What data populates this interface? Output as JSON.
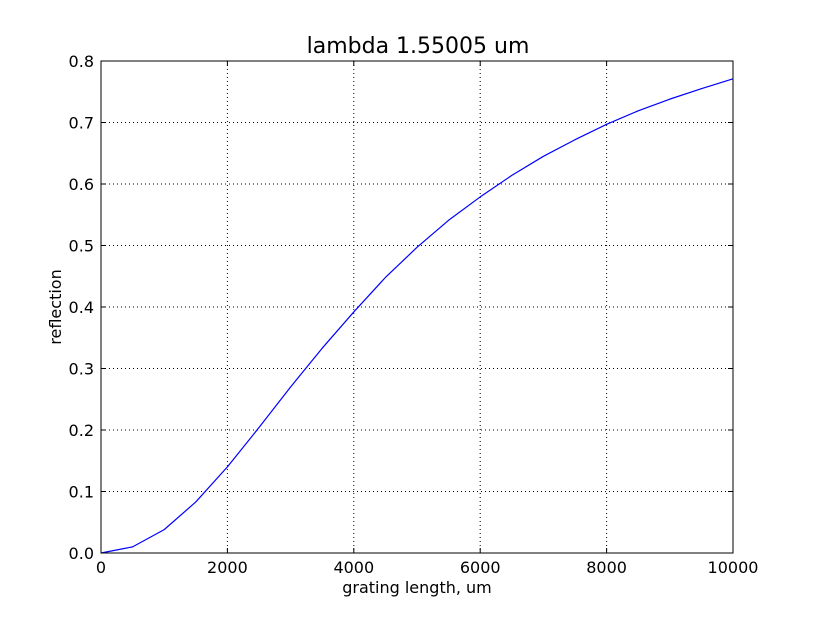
{
  "chart_data": {
    "type": "line",
    "title": "lambda 1.55005 um",
    "xlabel": "grating length, um",
    "ylabel": "reflection",
    "xlim": [
      0,
      10000
    ],
    "ylim": [
      0,
      0.8
    ],
    "xticks": [
      0,
      2000,
      4000,
      6000,
      8000,
      10000
    ],
    "yticks": [
      0.0,
      0.1,
      0.2,
      0.3,
      0.4,
      0.5,
      0.6,
      0.7,
      0.8
    ],
    "xtick_labels": [
      "0",
      "2000",
      "4000",
      "6000",
      "8000",
      "10000"
    ],
    "ytick_labels": [
      "0.0",
      "0.1",
      "0.2",
      "0.3",
      "0.4",
      "0.5",
      "0.6",
      "0.7",
      "0.8"
    ],
    "grid": true,
    "series": [
      {
        "color": "#0000ff",
        "x": [
          0,
          500,
          1000,
          1500,
          2000,
          2500,
          3000,
          3500,
          4000,
          4500,
          5000,
          5500,
          6000,
          6500,
          7000,
          7500,
          8000,
          8500,
          9000,
          9500,
          10000
        ],
        "y": [
          0.0,
          0.01,
          0.038,
          0.083,
          0.14,
          0.204,
          0.27,
          0.333,
          0.392,
          0.448,
          0.497,
          0.541,
          0.579,
          0.614,
          0.645,
          0.672,
          0.697,
          0.719,
          0.738,
          0.755,
          0.771
        ]
      }
    ]
  }
}
